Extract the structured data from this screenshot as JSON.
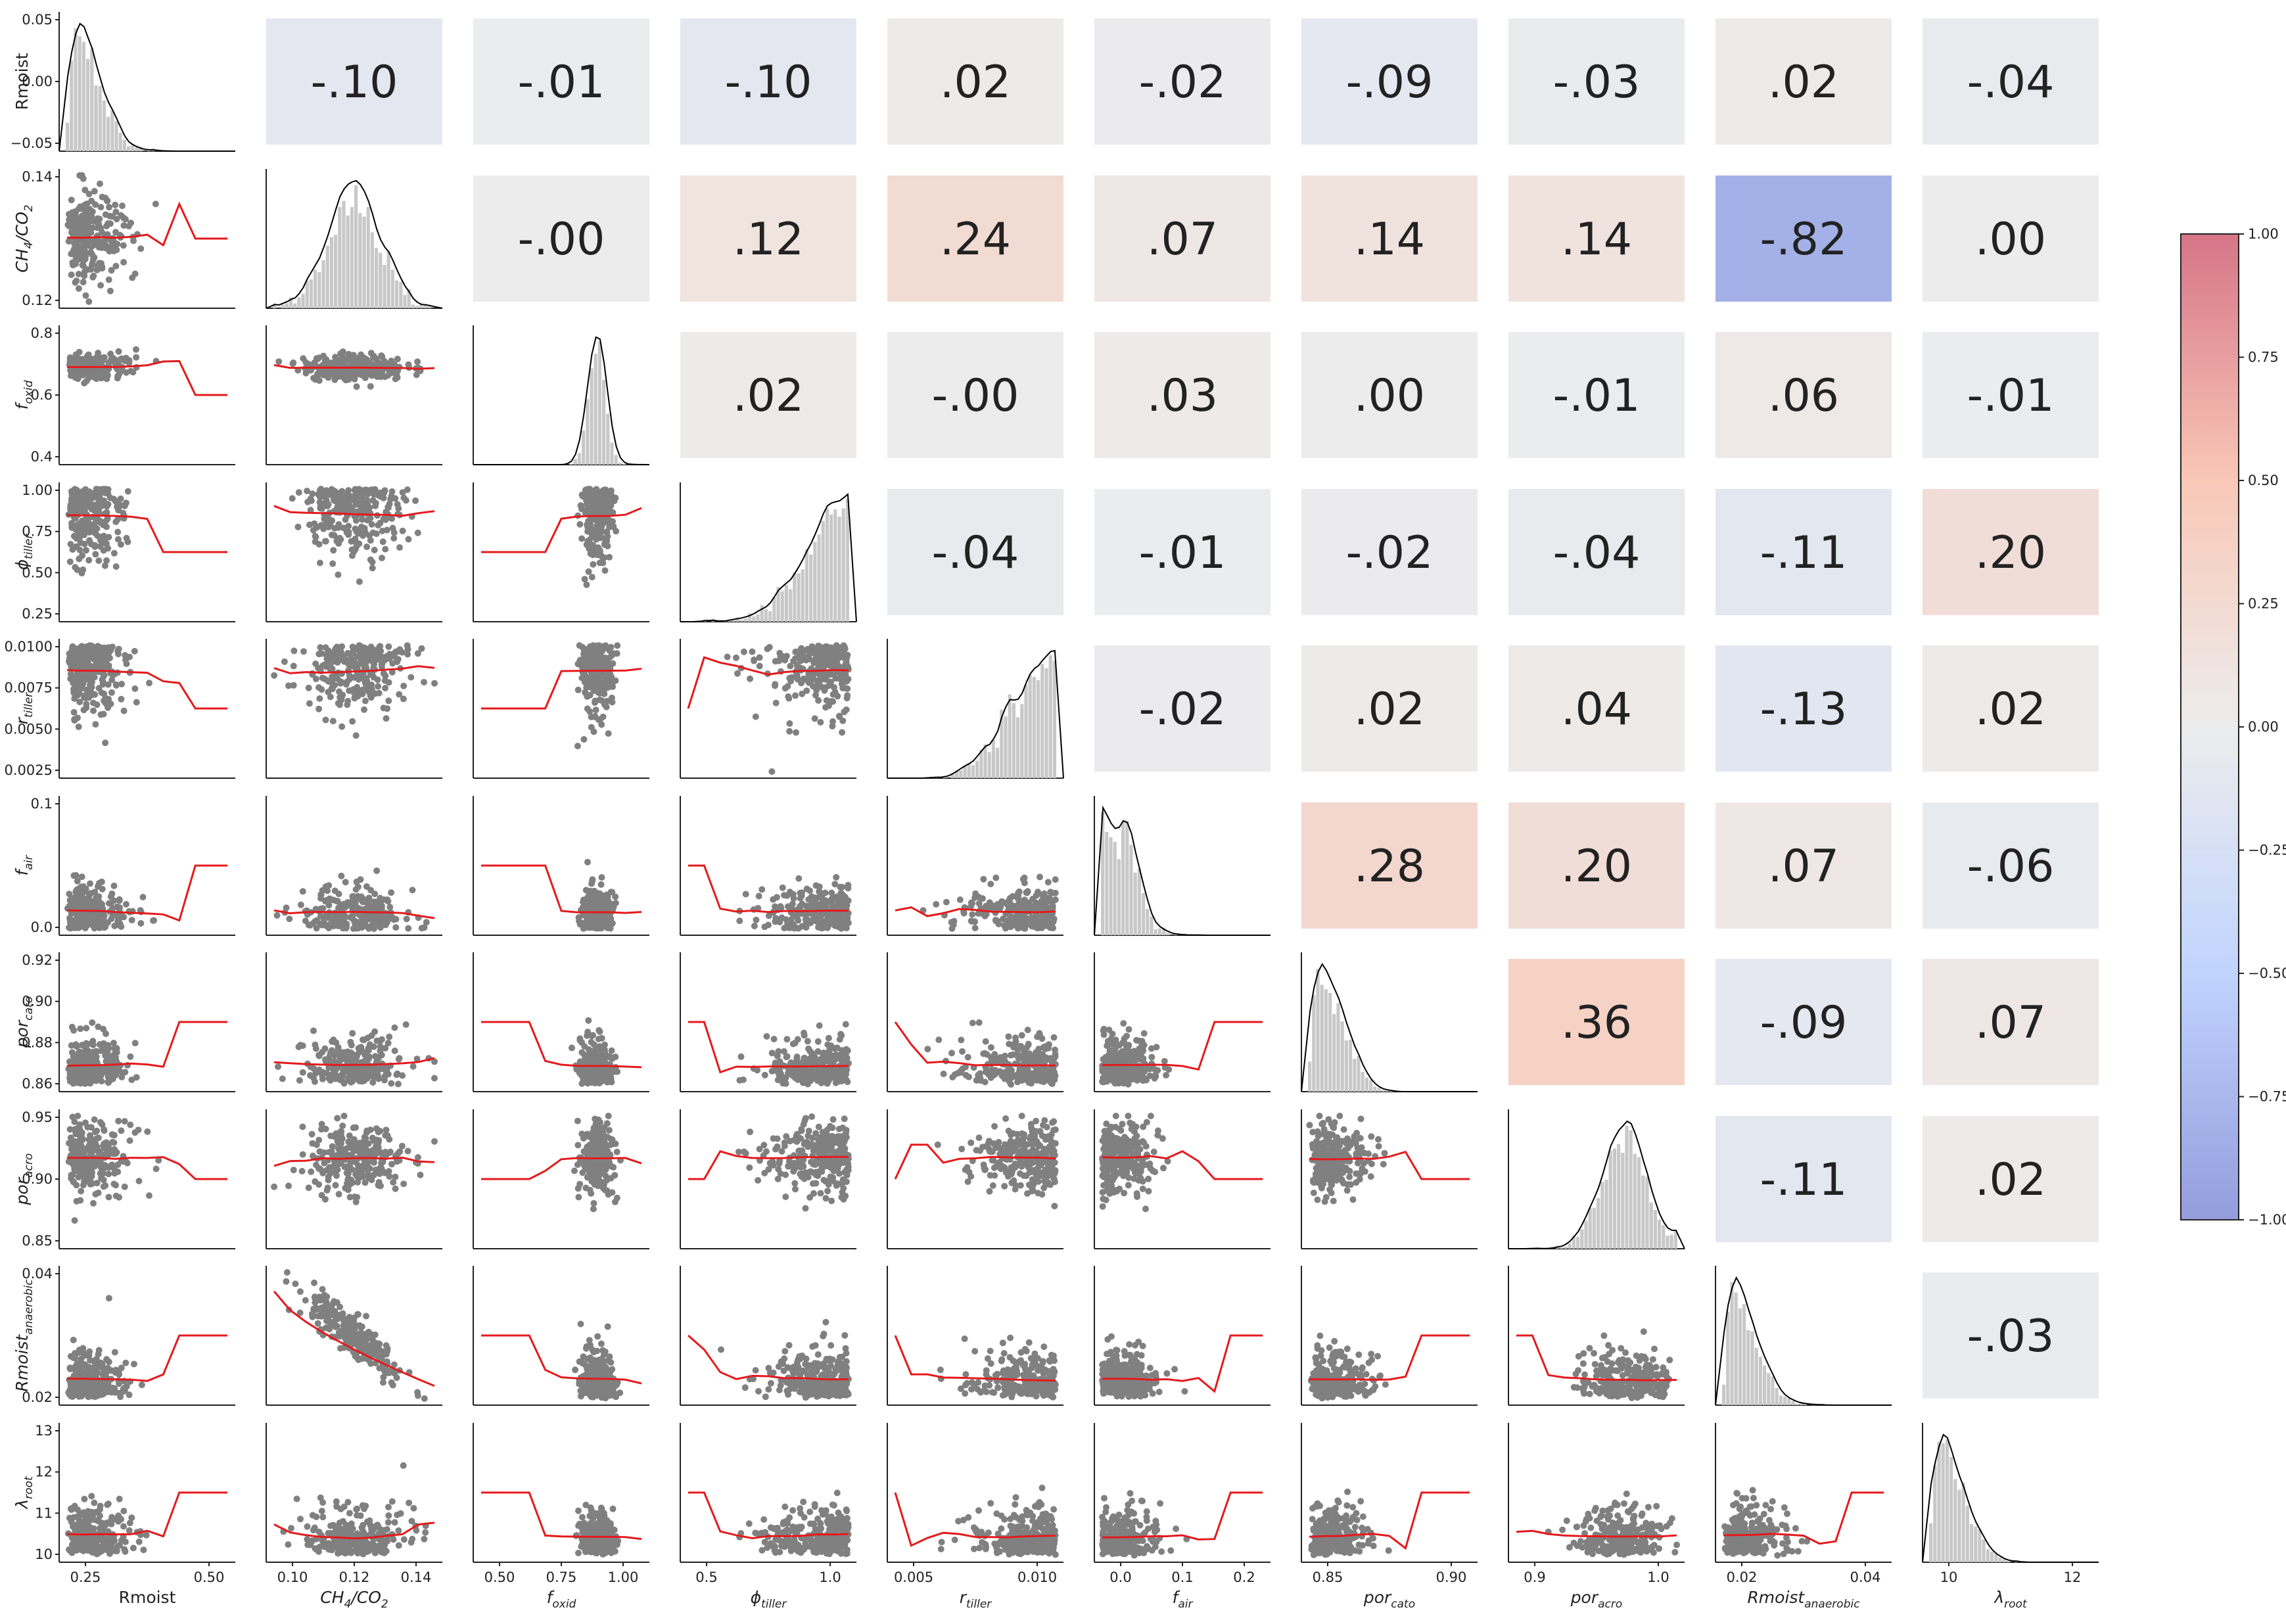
{
  "chart_data": {
    "type": "pairplot",
    "variables": [
      {
        "label": "Rmoist",
        "base": "Rmoist",
        "sub": ""
      },
      {
        "label": "CH4/CO2",
        "base": "CH",
        "sub": "4",
        "tail": "/CO",
        "sub2": "2"
      },
      {
        "label": "f_oxid",
        "base": "f",
        "sub": "oxid"
      },
      {
        "label": "phi_tiller",
        "base": "ϕ",
        "sub": "tiller"
      },
      {
        "label": "r_tiller",
        "base": "r",
        "sub": "tiller"
      },
      {
        "label": "f_air",
        "base": "f",
        "sub": "air"
      },
      {
        "label": "por_cato",
        "base": "por",
        "sub": "cato"
      },
      {
        "label": "por_acro",
        "base": "por",
        "sub": "acro"
      },
      {
        "label": "Rmoist_anaerobic",
        "base": "Rmoist",
        "sub": "anaerobic"
      },
      {
        "label": "lambda_root",
        "base": "λ",
        "sub": "root"
      }
    ],
    "x_ticks": [
      [
        "0.25",
        "0.50"
      ],
      [
        "0.10",
        "0.12",
        "0.14"
      ],
      [
        "0.50",
        "0.75",
        "1.00"
      ],
      [
        "0.5",
        "1.0"
      ],
      [
        "0.005",
        "0.010"
      ],
      [
        "0.0",
        "0.1",
        "0.2"
      ],
      [
        "0.85",
        "0.90"
      ],
      [
        "0.9",
        "1.0"
      ],
      [
        "0.02",
        "0.04"
      ],
      [
        "10",
        "12"
      ]
    ],
    "y_ticks": [
      [
        "0.05",
        "0.00",
        "−0.05"
      ],
      [
        "0.14",
        "0.12"
      ],
      [
        "0.8",
        "0.6",
        "0.4"
      ],
      [
        "1.00",
        "0.75",
        "0.50",
        "0.25"
      ],
      [
        "0.0100",
        "0.0075",
        "0.0050",
        "0.0025"
      ],
      [
        "0.1",
        "0.0"
      ],
      [
        "0.92",
        "0.90",
        "0.88",
        "0.86"
      ],
      [
        "0.95",
        "0.90",
        "0.85"
      ],
      [
        "0.04",
        "0.02"
      ],
      [
        "13",
        "12",
        "11",
        "10"
      ]
    ],
    "correlations": [
      {
        "row": 0,
        "col": 1,
        "value": -0.1,
        "label": "-.10"
      },
      {
        "row": 0,
        "col": 2,
        "value": -0.01,
        "label": "-.01"
      },
      {
        "row": 0,
        "col": 3,
        "value": -0.1,
        "label": "-.10"
      },
      {
        "row": 0,
        "col": 4,
        "value": 0.02,
        "label": ".02"
      },
      {
        "row": 0,
        "col": 5,
        "value": -0.02,
        "label": "-.02"
      },
      {
        "row": 0,
        "col": 6,
        "value": -0.09,
        "label": "-.09"
      },
      {
        "row": 0,
        "col": 7,
        "value": -0.03,
        "label": "-.03"
      },
      {
        "row": 0,
        "col": 8,
        "value": 0.02,
        "label": ".02"
      },
      {
        "row": 0,
        "col": 9,
        "value": -0.04,
        "label": "-.04"
      },
      {
        "row": 1,
        "col": 2,
        "value": 0.0,
        "label": "-.00"
      },
      {
        "row": 1,
        "col": 3,
        "value": 0.12,
        "label": ".12"
      },
      {
        "row": 1,
        "col": 4,
        "value": 0.24,
        "label": ".24"
      },
      {
        "row": 1,
        "col": 5,
        "value": 0.07,
        "label": ".07"
      },
      {
        "row": 1,
        "col": 6,
        "value": 0.14,
        "label": ".14"
      },
      {
        "row": 1,
        "col": 7,
        "value": 0.14,
        "label": ".14"
      },
      {
        "row": 1,
        "col": 8,
        "value": -0.82,
        "label": "-.82"
      },
      {
        "row": 1,
        "col": 9,
        "value": 0.0,
        "label": ".00"
      },
      {
        "row": 2,
        "col": 3,
        "value": 0.02,
        "label": ".02"
      },
      {
        "row": 2,
        "col": 4,
        "value": 0.0,
        "label": "-.00"
      },
      {
        "row": 2,
        "col": 5,
        "value": 0.03,
        "label": ".03"
      },
      {
        "row": 2,
        "col": 6,
        "value": 0.0,
        "label": ".00"
      },
      {
        "row": 2,
        "col": 7,
        "value": -0.01,
        "label": "-.01"
      },
      {
        "row": 2,
        "col": 8,
        "value": 0.06,
        "label": ".06"
      },
      {
        "row": 2,
        "col": 9,
        "value": -0.01,
        "label": "-.01"
      },
      {
        "row": 3,
        "col": 4,
        "value": -0.04,
        "label": "-.04"
      },
      {
        "row": 3,
        "col": 5,
        "value": -0.01,
        "label": "-.01"
      },
      {
        "row": 3,
        "col": 6,
        "value": -0.02,
        "label": "-.02"
      },
      {
        "row": 3,
        "col": 7,
        "value": -0.04,
        "label": "-.04"
      },
      {
        "row": 3,
        "col": 8,
        "value": -0.11,
        "label": "-.11"
      },
      {
        "row": 3,
        "col": 9,
        "value": 0.2,
        "label": ".20"
      },
      {
        "row": 4,
        "col": 5,
        "value": -0.02,
        "label": "-.02"
      },
      {
        "row": 4,
        "col": 6,
        "value": 0.02,
        "label": ".02"
      },
      {
        "row": 4,
        "col": 7,
        "value": 0.04,
        "label": ".04"
      },
      {
        "row": 4,
        "col": 8,
        "value": -0.13,
        "label": "-.13"
      },
      {
        "row": 4,
        "col": 9,
        "value": 0.02,
        "label": ".02"
      },
      {
        "row": 5,
        "col": 6,
        "value": 0.28,
        "label": ".28"
      },
      {
        "row": 5,
        "col": 7,
        "value": 0.2,
        "label": ".20"
      },
      {
        "row": 5,
        "col": 8,
        "value": 0.07,
        "label": ".07"
      },
      {
        "row": 5,
        "col": 9,
        "value": -0.06,
        "label": "-.06"
      },
      {
        "row": 6,
        "col": 7,
        "value": 0.36,
        "label": ".36"
      },
      {
        "row": 6,
        "col": 8,
        "value": -0.09,
        "label": "-.09"
      },
      {
        "row": 6,
        "col": 9,
        "value": 0.07,
        "label": ".07"
      },
      {
        "row": 7,
        "col": 8,
        "value": -0.11,
        "label": "-.11"
      },
      {
        "row": 7,
        "col": 9,
        "value": 0.02,
        "label": ".02"
      },
      {
        "row": 8,
        "col": 9,
        "value": -0.03,
        "label": "-.03"
      }
    ],
    "colorbar": {
      "range": [
        -1.0,
        1.0
      ],
      "cmap": "coolwarm",
      "ticks": [
        "1.00",
        "0.75",
        "0.50",
        "0.25",
        "0.00",
        "−0.25",
        "−0.50",
        "−0.75",
        "−1.00"
      ]
    },
    "colors": {
      "scatter": "#808080",
      "trend": "#e41a1c",
      "kde": "#000000",
      "hist": "#c8c8c8"
    }
  }
}
